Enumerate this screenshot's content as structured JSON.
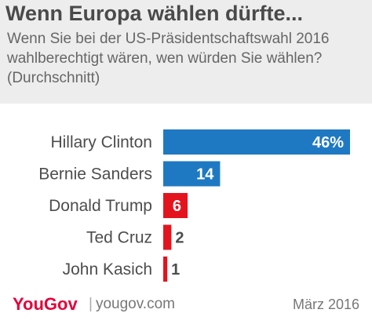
{
  "header": {
    "title": "Wenn Europa wählen dürfte...",
    "subtitle": "Wenn Sie bei der US-Präsidentschaftswahl 2016 wahlberechtigt wären, wen würden Sie wählen? (Durchschnitt)"
  },
  "chart_data": {
    "type": "bar",
    "orientation": "horizontal",
    "categories": [
      "Hillary Clinton",
      "Bernie Sanders",
      "Donald Trump",
      "Ted Cruz",
      "John Kasich"
    ],
    "values": [
      46,
      14,
      6,
      2,
      1
    ],
    "value_labels": [
      "46%",
      "14",
      "6",
      "2",
      "1"
    ],
    "colors": [
      "#1f79c2",
      "#1f79c2",
      "#e4141e",
      "#e4141e",
      "#e4141e"
    ],
    "xlim": [
      0,
      46
    ],
    "grid": false
  },
  "footer": {
    "brand": "YouGov",
    "separator": "|",
    "site": "yougov.com",
    "date": "März 2016"
  }
}
